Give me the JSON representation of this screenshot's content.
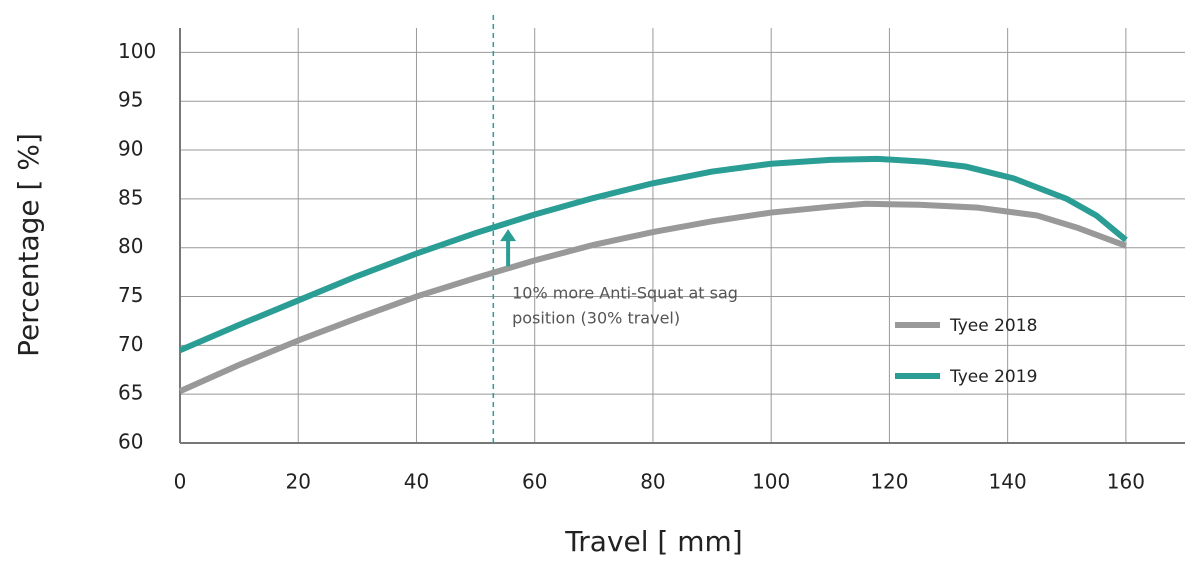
{
  "chart_data": {
    "type": "line",
    "x_label": "Travel [ mm]",
    "y_label": "Percentage [ %]",
    "xlim": [
      0,
      170
    ],
    "xticks": [
      0,
      20,
      40,
      60,
      80,
      100,
      120,
      140,
      160
    ],
    "ylim": [
      60,
      102.5
    ],
    "yticks": [
      60,
      65,
      70,
      75,
      80,
      85,
      90,
      95,
      100
    ],
    "grid": true,
    "legend": "right",
    "series": [
      {
        "name": "Tyee 2018",
        "color": "#999999",
        "x": [
          0,
          10,
          20,
          30,
          40,
          50,
          60,
          70,
          80,
          90,
          100,
          110,
          116,
          125,
          135,
          145,
          152,
          160
        ],
        "values": [
          65.3,
          68,
          70.5,
          72.8,
          75,
          76.9,
          78.7,
          80.3,
          81.6,
          82.7,
          83.6,
          84.2,
          84.5,
          84.4,
          84.1,
          83.3,
          82,
          80.2
        ]
      },
      {
        "name": "Tyee 2019",
        "color": "#2a9d94",
        "x": [
          0,
          10,
          20,
          30,
          40,
          50,
          60,
          70,
          80,
          90,
          100,
          110,
          118,
          126,
          133,
          141,
          150,
          155,
          160
        ],
        "values": [
          69.5,
          72.1,
          74.6,
          77.1,
          79.4,
          81.5,
          83.4,
          85.1,
          86.6,
          87.8,
          88.6,
          89,
          89.1,
          88.8,
          88.3,
          87.1,
          85,
          83.3,
          80.8
        ]
      }
    ],
    "annotation": {
      "x": 53,
      "arrow_x": 55.5,
      "arrow_from": 78.1,
      "arrow_to": 81.9,
      "text": [
        "10% more Anti-Squat at sag",
        "position (30% travel)"
      ]
    }
  }
}
